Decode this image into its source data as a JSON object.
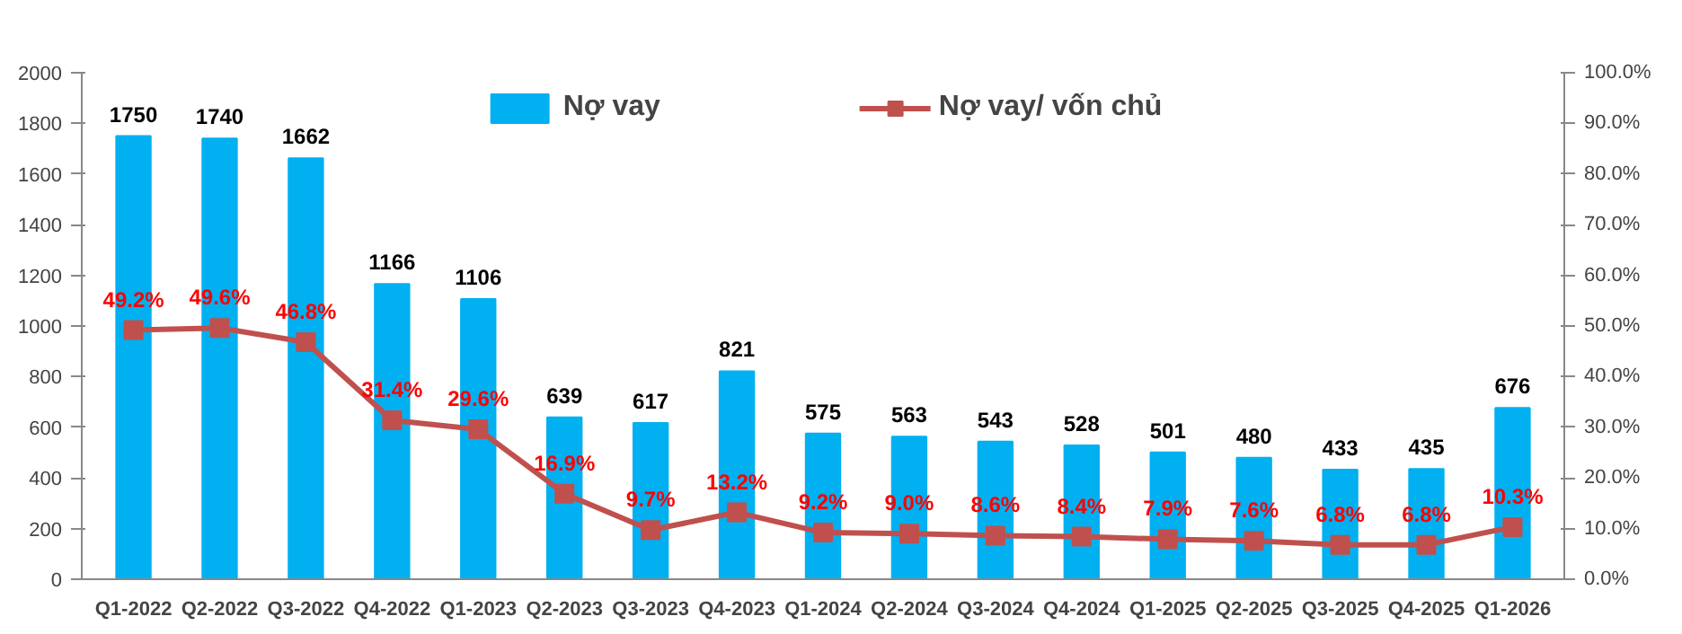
{
  "chart_data": {
    "type": "bar",
    "categories": [
      "Q1-2022",
      "Q2-2022",
      "Q3-2022",
      "Q4-2022",
      "Q1-2023",
      "Q2-2023",
      "Q3-2023",
      "Q4-2023",
      "Q1-2024",
      "Q2-2024",
      "Q3-2024",
      "Q4-2024",
      "Q1-2025",
      "Q2-2025",
      "Q3-2025",
      "Q4-2025",
      "Q1-2026"
    ],
    "series": [
      {
        "name": "Nợ vay",
        "color": "#00b0f0",
        "values": [
          1750,
          1740,
          1662,
          1166,
          1106,
          639,
          617,
          821,
          575,
          563,
          543,
          528,
          501,
          480,
          433,
          435,
          676
        ],
        "value_labels": [
          "1750",
          "1740",
          "1662",
          "1166",
          "1106",
          "639",
          "617",
          "821",
          "575",
          "563",
          "543",
          "528",
          "501",
          "480",
          "433",
          "435",
          "676"
        ]
      },
      {
        "name": "Nợ vay/ vốn chủ",
        "type": "line",
        "axis": "y2",
        "color": "#c0504d",
        "marker": "square",
        "line_style": "solid",
        "values": [
          49.2,
          49.6,
          46.8,
          31.4,
          29.6,
          16.9,
          9.7,
          13.2,
          9.2,
          9.0,
          8.6,
          8.4,
          7.9,
          7.6,
          6.8,
          6.8,
          10.3
        ],
        "value_labels": [
          "49.2%",
          "49.6%",
          "46.8%",
          "31.4%",
          "29.6%",
          "16.9%",
          "9.7%",
          "13.2%",
          "9.2%",
          "9.0%",
          "8.6%",
          "8.4%",
          "7.9%",
          "7.6%",
          "6.8%",
          "6.8%",
          "10.3%"
        ]
      }
    ],
    "ylim": [
      0,
      2000
    ],
    "yticks": [
      0,
      200,
      400,
      600,
      800,
      1000,
      1200,
      1400,
      1600,
      1800,
      2000
    ],
    "y2lim": [
      0,
      100
    ],
    "y2ticks": [
      {
        "value": 0,
        "label": "0.0%"
      },
      {
        "value": 10,
        "label": "10.0%"
      },
      {
        "value": 20,
        "label": "20.0%"
      },
      {
        "value": 30,
        "label": "30.0%"
      },
      {
        "value": 40,
        "label": "40.0%"
      },
      {
        "value": 50,
        "label": "50.0%"
      },
      {
        "value": 60,
        "label": "60.0%"
      },
      {
        "value": 70,
        "label": "70.0%"
      },
      {
        "value": 80,
        "label": "80.0%"
      },
      {
        "value": 90,
        "label": "90.0%"
      },
      {
        "value": 100,
        "label": "100.0%"
      }
    ],
    "grid": false,
    "legend": "top"
  }
}
